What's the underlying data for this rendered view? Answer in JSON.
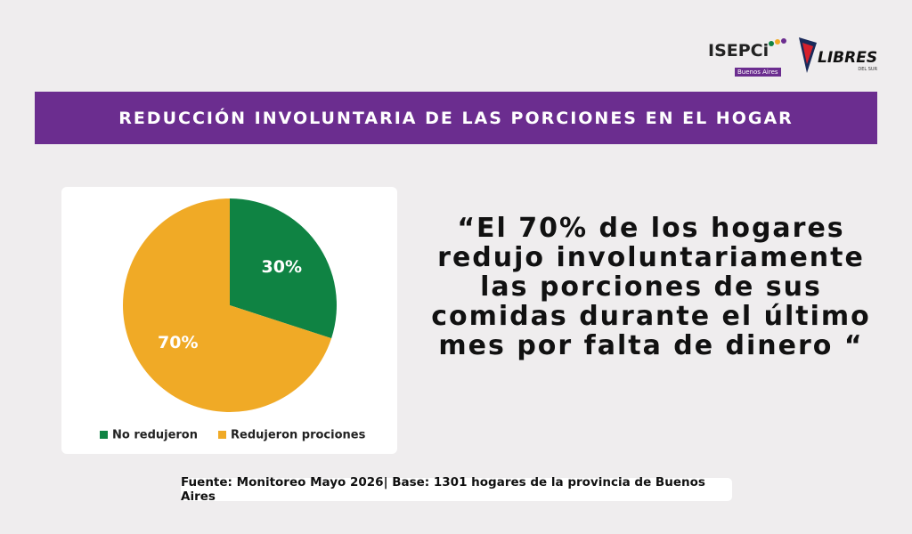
{
  "logos": {
    "isep": "ISEPCi",
    "isep_sub": "Buenos Aires",
    "libres": "LIBRES",
    "libres_sub": "DEL SUR"
  },
  "banner": "REDUCCIÓN INVOLUNTARIA DE LAS PORCIONES EN EL HOGAR",
  "chart_data": {
    "type": "pie",
    "categories": [
      "No redujeron",
      "Redujeron prociones"
    ],
    "values": [
      30,
      70
    ],
    "value_labels": [
      "30%",
      "70%"
    ],
    "colors": [
      "#0f8343",
      "#f0aa26"
    ],
    "legend": "bottom"
  },
  "quote": "“El 70% de los hogares redujo involuntariamente las porciones de sus comidas durante el último mes por falta de dinero “",
  "source": "Fuente: Monitoreo Mayo 2026| Base: 1301 hogares de la provincia de Buenos Aires"
}
